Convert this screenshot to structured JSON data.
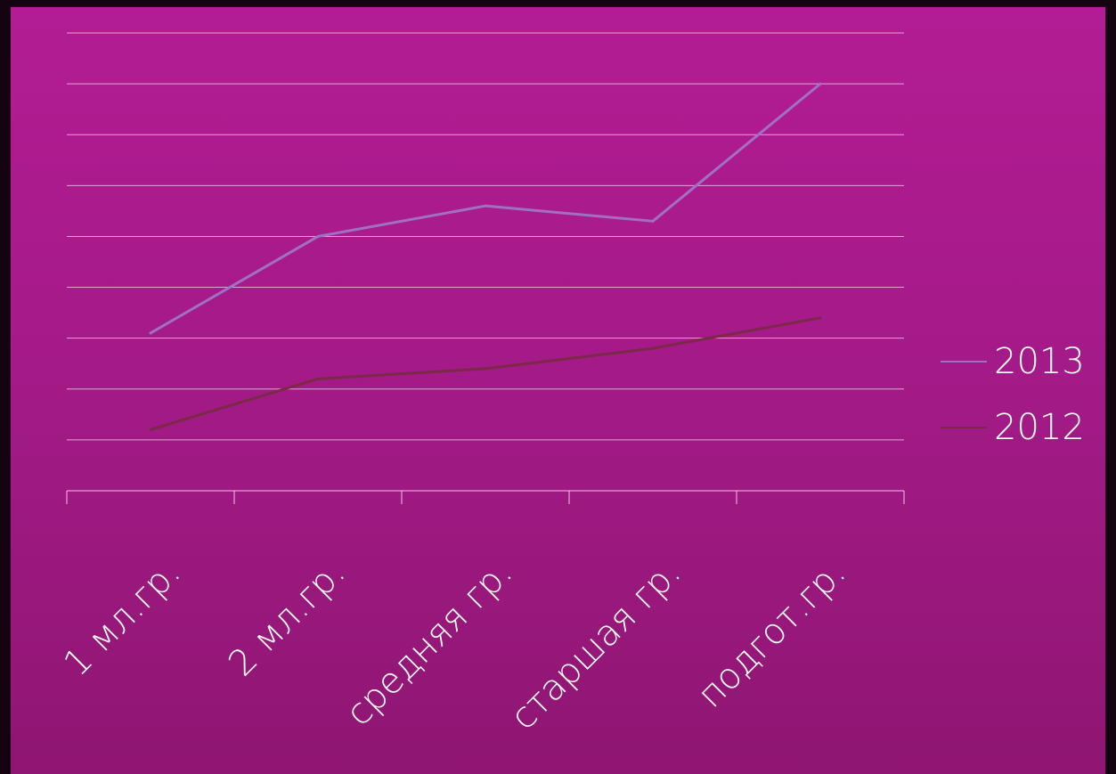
{
  "chart_data": {
    "type": "line",
    "categories": [
      "1 мл.гр.",
      "2 мл.гр.",
      "средняя гр.",
      "старшая гр.",
      "подгот.гр."
    ],
    "series": [
      {
        "name": "2013",
        "values": [
          31,
          50,
          56,
          53,
          80
        ],
        "color": "#a070c4"
      },
      {
        "name": "2012",
        "values": [
          12,
          22,
          24,
          28,
          34
        ],
        "color": "#7a2a46"
      }
    ],
    "ylim": [
      0,
      90
    ],
    "grid": true,
    "y_tick_labels_visible": false,
    "legend_position": "right",
    "title": "",
    "xlabel": "",
    "ylabel": ""
  },
  "colors": {
    "background_top": "#b31c94",
    "background_bottom": "#8f1672",
    "gridline": "#f0c8e4",
    "text": "#ffffff"
  }
}
